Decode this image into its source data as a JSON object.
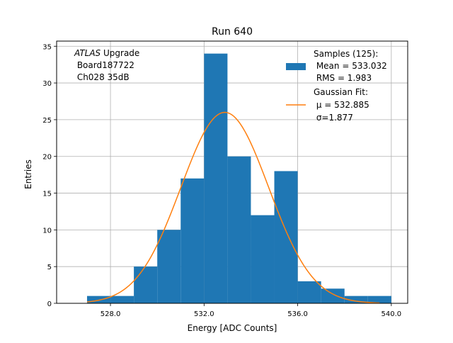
{
  "chart_data": {
    "type": "bar",
    "title": "Run 640",
    "xlabel": "Energy [ADC Counts]",
    "ylabel": "Entries",
    "xlim": [
      525.7,
      540.7
    ],
    "ylim": [
      0,
      35.7
    ],
    "x_ticks": [
      528.0,
      532.0,
      536.0,
      540.0
    ],
    "x_tick_labels": [
      "528.0",
      "532.0",
      "536.0",
      "540.0"
    ],
    "y_ticks": [
      0,
      5,
      10,
      15,
      20,
      25,
      30,
      35
    ],
    "y_tick_labels": [
      "0",
      "5",
      "10",
      "15",
      "20",
      "25",
      "30",
      "35"
    ],
    "grid": true,
    "histogram": {
      "name": "Samples (125):",
      "color": "#1f77b4",
      "bin_edges": [
        527.0,
        528.0,
        529.0,
        530.0,
        531.0,
        532.0,
        533.0,
        534.0,
        535.0,
        536.0,
        537.0,
        538.0,
        539.0,
        540.0
      ],
      "counts": [
        1,
        1,
        5,
        10,
        17,
        34,
        20,
        12,
        18,
        3,
        2,
        1,
        1
      ]
    },
    "fit": {
      "name": "Gaussian Fit:",
      "color": "#ff7f0e",
      "mu": 532.885,
      "sigma": 1.877,
      "amplitude": 26.0,
      "x_range": [
        527.0,
        539.5
      ]
    },
    "annotation": {
      "line1_italic": "ATLAS",
      "line1_rest": " Upgrade",
      "line2": " Board187722",
      "line3": " Ch028 35dB"
    },
    "legend": {
      "placement": "top-right",
      "hist_lines": [
        "Samples (125):",
        " Mean = 533.032",
        " RMS = 1.983"
      ],
      "fit_lines": [
        "Gaussian Fit:",
        " μ = 532.885",
        " σ=1.877"
      ]
    }
  }
}
